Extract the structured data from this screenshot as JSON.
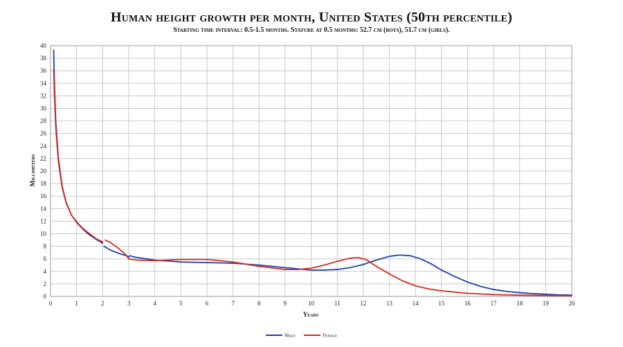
{
  "chart_data": {
    "type": "line",
    "title": "Human height growth per month, United States (50th percentile)",
    "subtitle": "Starting time interval: 0.5-1.5 months. Stature at 0.5 months: 52.7 cm (boys), 51.7 cm (girls).",
    "xlabel": "Years",
    "ylabel": "Millimeters",
    "xlim": [
      0,
      20
    ],
    "ylim": [
      0,
      40
    ],
    "xticks": [
      0,
      1,
      2,
      3,
      4,
      5,
      6,
      7,
      8,
      9,
      10,
      11,
      12,
      13,
      14,
      15,
      16,
      17,
      18,
      19,
      20
    ],
    "yticks": [
      0,
      2,
      4,
      6,
      8,
      10,
      12,
      14,
      16,
      18,
      20,
      22,
      24,
      26,
      28,
      30,
      32,
      34,
      36,
      38,
      40
    ],
    "grid": true,
    "legend_position": "bottom",
    "series": [
      {
        "name": "Male",
        "color": "#1a3fb5",
        "segments": [
          [
            [
              0.12,
              39.3
            ],
            [
              0.15,
              34
            ],
            [
              0.2,
              28
            ],
            [
              0.3,
              22
            ],
            [
              0.45,
              17.5
            ],
            [
              0.6,
              15
            ],
            [
              0.8,
              13
            ],
            [
              1,
              11.8
            ],
            [
              1.25,
              10.7
            ],
            [
              1.5,
              9.8
            ],
            [
              1.75,
              9.1
            ],
            [
              2,
              8.5
            ]
          ],
          [
            [
              2.05,
              8.0
            ],
            [
              2.3,
              7.4
            ],
            [
              2.6,
              6.9
            ],
            [
              2.9,
              6.5
            ],
            [
              3.0,
              6.3
            ],
            [
              3.05,
              6.5
            ],
            [
              3.2,
              6.3
            ],
            [
              3.5,
              6.1
            ],
            [
              4,
              5.8
            ],
            [
              5,
              5.5
            ],
            [
              6,
              5.4
            ],
            [
              7,
              5.3
            ],
            [
              8,
              5.0
            ],
            [
              9,
              4.6
            ],
            [
              10,
              4.2
            ],
            [
              10.5,
              4.2
            ],
            [
              11,
              4.3
            ],
            [
              11.5,
              4.6
            ],
            [
              12,
              5.1
            ],
            [
              12.5,
              5.8
            ],
            [
              13,
              6.4
            ],
            [
              13.4,
              6.6
            ],
            [
              13.8,
              6.5
            ],
            [
              14.2,
              6.0
            ],
            [
              14.6,
              5.2
            ],
            [
              15,
              4.2
            ],
            [
              15.5,
              3.2
            ],
            [
              16,
              2.3
            ],
            [
              16.5,
              1.6
            ],
            [
              17,
              1.1
            ],
            [
              17.5,
              0.8
            ],
            [
              18,
              0.6
            ],
            [
              18.5,
              0.45
            ],
            [
              19,
              0.35
            ],
            [
              19.5,
              0.25
            ],
            [
              20,
              0.2
            ]
          ]
        ]
      },
      {
        "name": "Female",
        "color": "#d42a1a",
        "segments": [
          [
            [
              0.12,
              36.3
            ],
            [
              0.15,
              32
            ],
            [
              0.2,
              27
            ],
            [
              0.3,
              21.5
            ],
            [
              0.45,
              17.3
            ],
            [
              0.6,
              14.9
            ],
            [
              0.8,
              13
            ],
            [
              1,
              11.9
            ],
            [
              1.25,
              10.8
            ],
            [
              1.5,
              10.0
            ],
            [
              1.75,
              9.2
            ],
            [
              2,
              8.7
            ]
          ],
          [
            [
              2.1,
              9.0
            ],
            [
              2.3,
              8.6
            ],
            [
              2.6,
              7.7
            ],
            [
              2.9,
              6.6
            ],
            [
              3.0,
              6.0
            ],
            [
              3.3,
              5.8
            ],
            [
              4,
              5.7
            ],
            [
              5,
              5.9
            ],
            [
              6,
              5.9
            ],
            [
              7,
              5.5
            ],
            [
              8,
              4.8
            ],
            [
              9,
              4.3
            ],
            [
              9.5,
              4.3
            ],
            [
              10,
              4.5
            ],
            [
              10.5,
              5.0
            ],
            [
              11,
              5.6
            ],
            [
              11.5,
              6.1
            ],
            [
              11.8,
              6.2
            ],
            [
              12.1,
              5.9
            ],
            [
              12.5,
              4.8
            ],
            [
              13,
              3.6
            ],
            [
              13.5,
              2.5
            ],
            [
              14,
              1.7
            ],
            [
              14.5,
              1.2
            ],
            [
              15,
              0.9
            ],
            [
              15.5,
              0.7
            ],
            [
              16,
              0.5
            ],
            [
              17,
              0.3
            ],
            [
              18,
              0.2
            ],
            [
              19,
              0.15
            ],
            [
              20,
              0.1
            ]
          ]
        ]
      }
    ]
  }
}
